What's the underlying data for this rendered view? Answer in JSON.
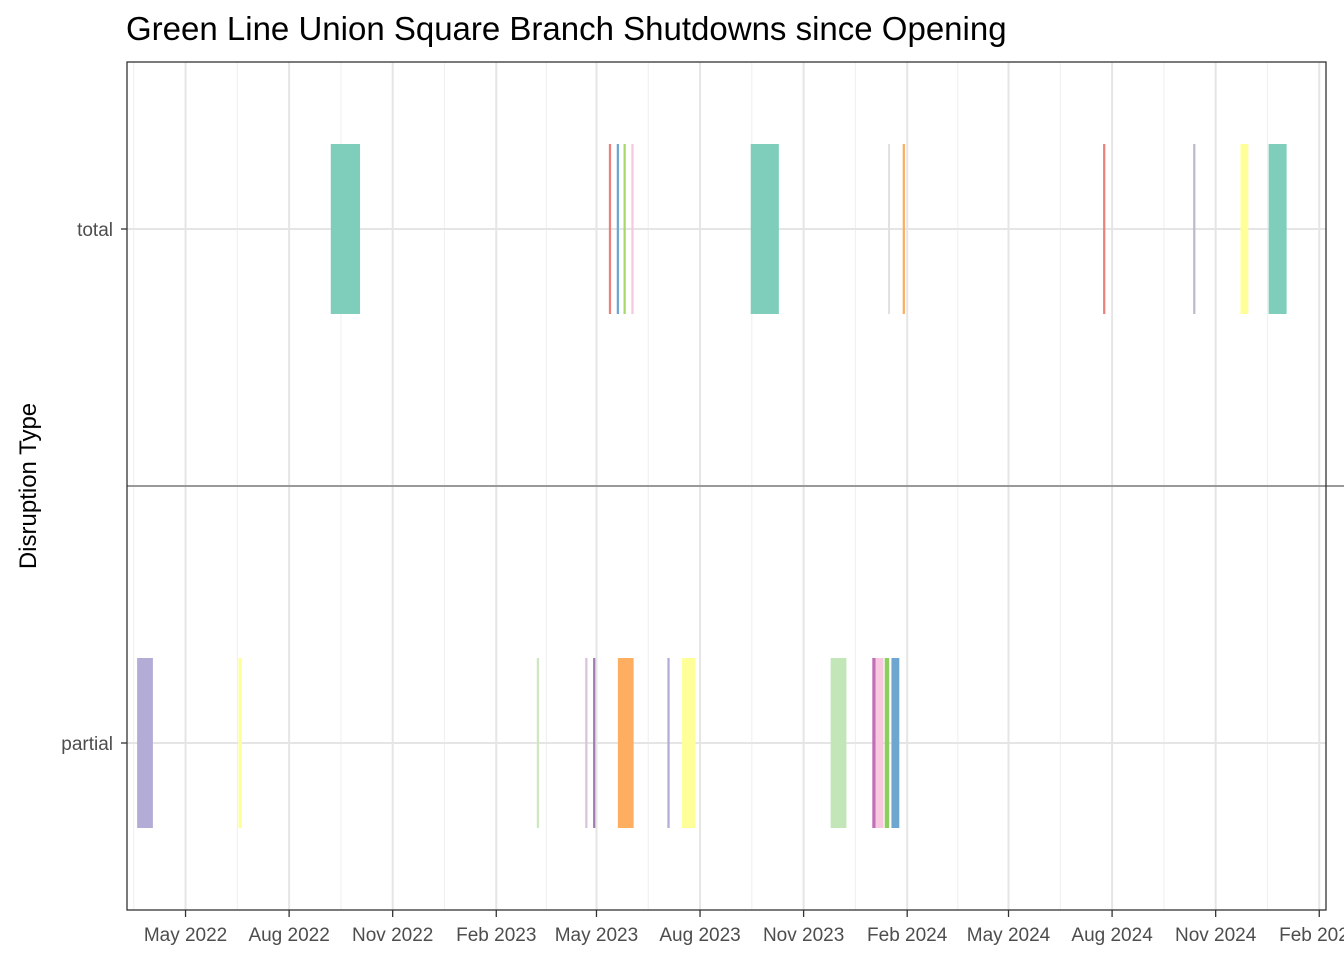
{
  "chart_data": {
    "type": "timeline",
    "title": "Green Line Union Square Branch Shutdowns since Opening",
    "xlabel": "",
    "ylabel": "Disruption Type",
    "xlim": [
      "2022-03-10",
      "2025-02-07"
    ],
    "x_ticks": [
      {
        "date": "2022-05-01",
        "label": "May 2022"
      },
      {
        "date": "2022-08-01",
        "label": "Aug 2022"
      },
      {
        "date": "2022-11-01",
        "label": "Nov 2022"
      },
      {
        "date": "2023-02-01",
        "label": "Feb 2023"
      },
      {
        "date": "2023-05-01",
        "label": "May 2023"
      },
      {
        "date": "2023-08-01",
        "label": "Aug 2023"
      },
      {
        "date": "2023-11-01",
        "label": "Nov 2023"
      },
      {
        "date": "2024-02-01",
        "label": "Feb 2024"
      },
      {
        "date": "2024-05-01",
        "label": "May 2024"
      },
      {
        "date": "2024-08-01",
        "label": "Aug 2024"
      },
      {
        "date": "2024-11-01",
        "label": "Nov 2024"
      },
      {
        "date": "2025-02-01",
        "label": "Feb 2025"
      }
    ],
    "categories": [
      "total",
      "partial"
    ],
    "grid": true,
    "legend": "none",
    "series": [
      {
        "category": "total",
        "start": "2022-09-07",
        "end": "2022-10-03",
        "color": "#7fcdbb"
      },
      {
        "category": "total",
        "start": "2023-05-12",
        "end": "2023-05-14",
        "color": "#e8827a"
      },
      {
        "category": "total",
        "start": "2023-05-19",
        "end": "2023-05-21",
        "color": "#6fa6cf"
      },
      {
        "category": "total",
        "start": "2023-05-25",
        "end": "2023-05-27",
        "color": "#a6d96a"
      },
      {
        "category": "total",
        "start": "2023-06-01",
        "end": "2023-06-03",
        "color": "#f7c8e0"
      },
      {
        "category": "total",
        "start": "2023-09-15",
        "end": "2023-10-10",
        "color": "#7fcdbb"
      },
      {
        "category": "total",
        "start": "2024-01-15",
        "end": "2024-01-16",
        "color": "#e0e0e0"
      },
      {
        "category": "total",
        "start": "2024-01-28",
        "end": "2024-01-30",
        "color": "#fdae61"
      },
      {
        "category": "total",
        "start": "2024-07-24",
        "end": "2024-07-26",
        "color": "#e8827a"
      },
      {
        "category": "total",
        "start": "2024-10-12",
        "end": "2024-10-14",
        "color": "#bbbbcc"
      },
      {
        "category": "total",
        "start": "2024-11-23",
        "end": "2024-11-30",
        "color": "#ffff99"
      },
      {
        "category": "total",
        "start": "2024-12-18",
        "end": "2025-01-03",
        "color": "#7fcdbb"
      },
      {
        "category": "partial",
        "start": "2022-03-19",
        "end": "2022-04-02",
        "color": "#b3acd6"
      },
      {
        "category": "partial",
        "start": "2022-06-17",
        "end": "2022-06-20",
        "color": "#ffff99"
      },
      {
        "category": "partial",
        "start": "2023-03-09",
        "end": "2023-03-11",
        "color": "#cce8c0"
      },
      {
        "category": "partial",
        "start": "2023-04-21",
        "end": "2023-04-23",
        "color": "#d7c3dc"
      },
      {
        "category": "partial",
        "start": "2023-04-28",
        "end": "2023-04-30",
        "color": "#a07cb0"
      },
      {
        "category": "partial",
        "start": "2023-05-20",
        "end": "2023-06-03",
        "color": "#fdae61"
      },
      {
        "category": "partial",
        "start": "2023-07-03",
        "end": "2023-07-05",
        "color": "#b3acd6"
      },
      {
        "category": "partial",
        "start": "2023-07-16",
        "end": "2023-07-28",
        "color": "#ffff99"
      },
      {
        "category": "partial",
        "start": "2023-11-25",
        "end": "2023-12-09",
        "color": "#c2e6b8"
      },
      {
        "category": "partial",
        "start": "2024-01-01",
        "end": "2024-01-04",
        "color": "#c26fb8"
      },
      {
        "category": "partial",
        "start": "2024-01-04",
        "end": "2024-01-11",
        "color": "#f7c8e0"
      },
      {
        "category": "partial",
        "start": "2024-01-12",
        "end": "2024-01-16",
        "color": "#8ccf5e"
      },
      {
        "category": "partial",
        "start": "2024-01-18",
        "end": "2024-01-25",
        "color": "#6fa6cf"
      }
    ]
  }
}
